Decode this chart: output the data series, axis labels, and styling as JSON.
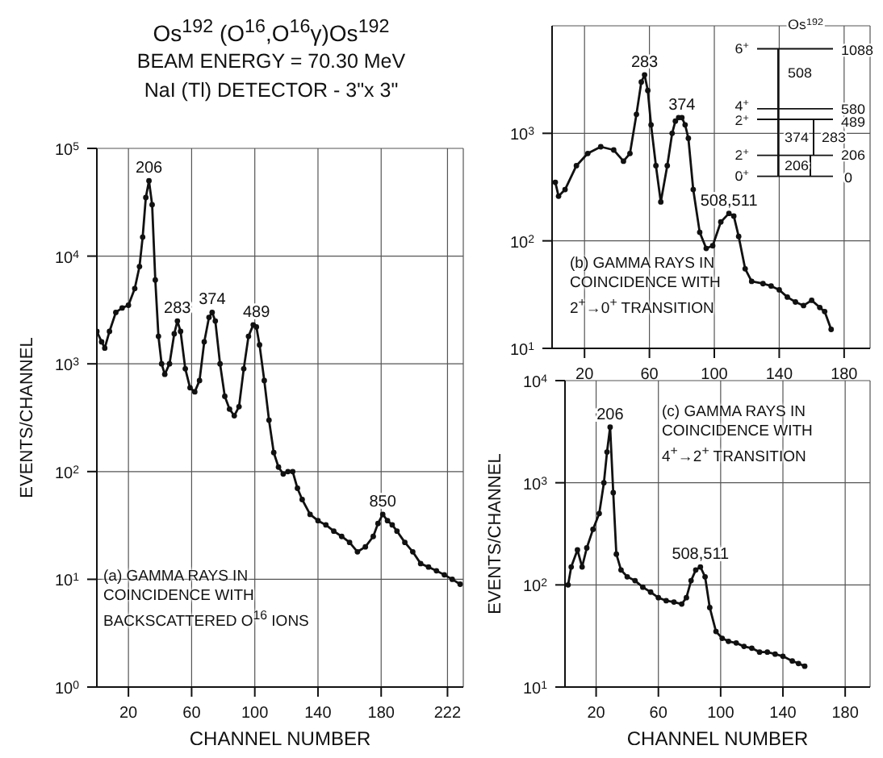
{
  "chart_data": [
    {
      "type": "line",
      "title": "Os$^{192}$ (O$^{16}$,O$^{16}$γ)Os$^{192}$",
      "subtitle": "BEAM ENERGY = 70.30 MeV\nNaI (Tl) DETECTOR - 3\"x 3\"",
      "xlabel": "CHANNEL NUMBER",
      "ylabel": "EVENTS/CHANNEL",
      "log": "y",
      "grid": true,
      "marker": "circle",
      "line_style": "solid",
      "xlim": [
        0,
        232
      ],
      "xticks": [
        20,
        60,
        100,
        140,
        180,
        222
      ],
      "ylim": [
        1,
        100000
      ],
      "yticks": [
        {
          "value": 1,
          "label": "10$^{0}$"
        },
        {
          "value": 10,
          "label": "10$^{1}$"
        },
        {
          "value": 100,
          "label": "10$^{2}$"
        },
        {
          "value": 1000,
          "label": "10$^{3}$"
        },
        {
          "value": 10000,
          "label": "10$^{4}$"
        },
        {
          "value": 100000,
          "label": "10$^{5}$"
        }
      ],
      "x": [
        0,
        3,
        5,
        8,
        12,
        16,
        20,
        24,
        27,
        29,
        31,
        33,
        35,
        37,
        39,
        41,
        43,
        46,
        49,
        51,
        53,
        56,
        59,
        62,
        65,
        68,
        71,
        73,
        75,
        78,
        81,
        84,
        87,
        90,
        93,
        96,
        99,
        101,
        103,
        106,
        109,
        112,
        115,
        118,
        121,
        124,
        127,
        130,
        135,
        140,
        145,
        150,
        155,
        160,
        165,
        170,
        175,
        178,
        181,
        184,
        187,
        190,
        195,
        200,
        205,
        210,
        215,
        220,
        225,
        230
      ],
      "series": [
        {
          "color": "#111111",
          "values": [
            2000,
            1600,
            1400,
            2000,
            3000,
            3300,
            3500,
            5000,
            8000,
            15000,
            35000,
            50000,
            30000,
            6000,
            1800,
            1000,
            800,
            1000,
            1900,
            2500,
            2000,
            900,
            600,
            550,
            700,
            1600,
            2700,
            3000,
            2500,
            1000,
            500,
            380,
            330,
            400,
            900,
            1800,
            2300,
            2200,
            1500,
            700,
            300,
            150,
            110,
            95,
            100,
            100,
            70,
            55,
            40,
            35,
            32,
            28,
            25,
            22,
            18,
            20,
            25,
            33,
            40,
            35,
            32,
            28,
            22,
            18,
            14,
            13,
            12,
            11,
            10,
            9
          ]
        }
      ],
      "annotations": [
        {
          "text": "206",
          "x": 33,
          "y": 50000
        },
        {
          "text": "283",
          "x": 51,
          "y": 2500
        },
        {
          "text": "374",
          "x": 73,
          "y": 3000
        },
        {
          "text": "489",
          "x": 101,
          "y": 2300
        },
        {
          "text": "850",
          "x": 181,
          "y": 40
        },
        "(a) GAMMA RAYS IN\nCOINCIDENCE WITH\nBACKSCATTERED O$^{16}$ IONS"
      ]
    },
    {
      "type": "line",
      "log": "y",
      "grid": true,
      "marker": "circle",
      "line_style": "solid",
      "xlim": [
        0,
        196
      ],
      "xticks": [
        20,
        60,
        100,
        140,
        180
      ],
      "ylim": [
        10,
        10000
      ],
      "yticks": [
        {
          "value": 10,
          "label": "10$^{1}$"
        },
        {
          "value": 100,
          "label": "10$^{2}$"
        },
        {
          "value": 1000,
          "label": "10$^{3}$"
        }
      ],
      "x": [
        2,
        4,
        8,
        15,
        22,
        30,
        38,
        44,
        48,
        52,
        55,
        57,
        59,
        61,
        64,
        67,
        71,
        74,
        76,
        78,
        80,
        82,
        84,
        87,
        91,
        95,
        99,
        104,
        109,
        112,
        115,
        119,
        123,
        130,
        135,
        140,
        145,
        150,
        155,
        160,
        165,
        168,
        172
      ],
      "series": [
        {
          "color": "#111111",
          "values": [
            350,
            260,
            300,
            500,
            650,
            750,
            700,
            550,
            650,
            1500,
            3000,
            3500,
            2500,
            1200,
            500,
            230,
            500,
            1000,
            1300,
            1400,
            1400,
            1200,
            900,
            300,
            120,
            85,
            90,
            150,
            180,
            170,
            110,
            55,
            42,
            40,
            38,
            35,
            30,
            27,
            25,
            28,
            24,
            22,
            15
          ]
        }
      ],
      "annotations": [
        {
          "text": "283",
          "x": 57,
          "y": 3500
        },
        {
          "text": "374",
          "x": 80,
          "y": 1400
        },
        {
          "text": "508,511",
          "x": 109,
          "y": 180
        },
        "(b) GAMMA RAYS IN\nCOINCIDENCE WITH\n2$^{+}$→0$^{+}$ TRANSITION",
        "Os$^{192}$",
        "6$^{+}$",
        "1088",
        "508",
        "4$^{+}$",
        "580",
        "2$^{+}$",
        "489",
        "374",
        "283",
        "2$^{+}$",
        "206",
        "206",
        "0$^{+}$",
        "0"
      ]
    },
    {
      "type": "line",
      "xlabel": "CHANNEL NUMBER",
      "ylabel": "EVENTS/CHANNEL",
      "log": "y",
      "grid": true,
      "marker": "circle",
      "line_style": "solid",
      "xlim": [
        0,
        196
      ],
      "xticks": [
        20,
        60,
        100,
        140,
        180
      ],
      "ylim": [
        10,
        10000
      ],
      "yticks": [
        {
          "value": 10,
          "label": "10$^{1}$"
        },
        {
          "value": 100,
          "label": "10$^{2}$"
        },
        {
          "value": 1000,
          "label": "10$^{3}$"
        },
        {
          "value": 10000,
          "label": "10$^{4}$"
        }
      ],
      "x": [
        2,
        4,
        8,
        11,
        14,
        18,
        22,
        25,
        27,
        29,
        31,
        33,
        36,
        40,
        45,
        50,
        55,
        60,
        65,
        70,
        75,
        78,
        81,
        84,
        87,
        90,
        93,
        97,
        101,
        105,
        110,
        115,
        120,
        125,
        130,
        135,
        140,
        146,
        150,
        154
      ],
      "series": [
        {
          "color": "#111111",
          "values": [
            100,
            150,
            220,
            150,
            230,
            350,
            500,
            1000,
            2000,
            3500,
            800,
            200,
            140,
            120,
            110,
            95,
            85,
            75,
            70,
            68,
            65,
            75,
            110,
            140,
            150,
            120,
            60,
            35,
            30,
            28,
            27,
            25,
            24,
            22,
            22,
            21,
            20,
            18,
            17,
            16
          ]
        }
      ],
      "annotations": [
        {
          "text": "206",
          "x": 29,
          "y": 3500
        },
        {
          "text": "508,511",
          "x": 87,
          "y": 150
        },
        "(c) GAMMA RAYS IN\nCOINCIDENCE WITH\n4$^{+}$→2$^{+}$ TRANSITION"
      ]
    }
  ]
}
